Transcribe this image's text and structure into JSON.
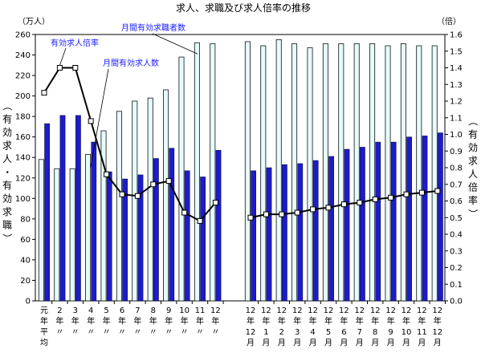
{
  "chart_data": {
    "type": "bar",
    "title": "求人、求職及び求人倍率の推移",
    "left_unit": "（万人）",
    "right_unit": "（倍）",
    "ylabel_left": "（有効求人・有効求職）",
    "ylabel_right": "（有効求人倍率）",
    "ylim_left": [
      0,
      260
    ],
    "ylim_right": [
      0,
      1.6
    ],
    "left_ticks": [
      "0",
      "20",
      "40",
      "60",
      "80",
      "100",
      "120",
      "140",
      "160",
      "180",
      "200",
      "220",
      "240",
      "260"
    ],
    "right_ticks": [
      "0.0",
      "0.1",
      "0.2",
      "0.3",
      "0.4",
      "0.5",
      "0.6",
      "0.7",
      "0.8",
      "0.9",
      "1.0",
      "1.1",
      "1.2",
      "1.3",
      "1.4",
      "1.5",
      "1.6"
    ],
    "categories_group1": [
      [
        "元",
        "年",
        "平",
        "均"
      ],
      [
        "2",
        "年",
        "〃"
      ],
      [
        "3",
        "年",
        "〃"
      ],
      [
        "4",
        "年",
        "〃"
      ],
      [
        "5",
        "年",
        "〃"
      ],
      [
        "6",
        "年",
        "〃"
      ],
      [
        "7",
        "年",
        "〃"
      ],
      [
        "8",
        "年",
        "〃"
      ],
      [
        "9",
        "年",
        "〃"
      ],
      [
        "10",
        "年",
        "〃"
      ],
      [
        "11",
        "年",
        "〃"
      ],
      [
        "12",
        "年",
        "〃"
      ]
    ],
    "categories_group2": [
      [
        "12",
        "年",
        "12",
        "月"
      ],
      [
        "12",
        "年",
        "1",
        "月"
      ],
      [
        "12",
        "年",
        "2",
        "月"
      ],
      [
        "12",
        "年",
        "3",
        "月"
      ],
      [
        "12",
        "年",
        "4",
        "月"
      ],
      [
        "12",
        "年",
        "5",
        "月"
      ],
      [
        "12",
        "年",
        "6",
        "月"
      ],
      [
        "12",
        "年",
        "7",
        "月"
      ],
      [
        "12",
        "年",
        "8",
        "月"
      ],
      [
        "12",
        "年",
        "9",
        "月"
      ],
      [
        "12",
        "年",
        "10",
        "月"
      ],
      [
        "12",
        "年",
        "11",
        "月"
      ],
      [
        "12",
        "年",
        "12",
        "月"
      ]
    ],
    "series": [
      {
        "name": "月間有効求職者数",
        "axis": "left",
        "color": "#e6fbfb",
        "group1": [
          138,
          129,
          129,
          143,
          166,
          185,
          195,
          198,
          206,
          238,
          252,
          251
        ],
        "group2": [
          253,
          249,
          255,
          251,
          247,
          251,
          251,
          251,
          251,
          249,
          251,
          249,
          249
        ]
      },
      {
        "name": "月間有効求人数",
        "axis": "left",
        "color": "#1c1cc8",
        "group1": [
          173,
          181,
          181,
          155,
          126,
          119,
          123,
          139,
          149,
          127,
          121,
          147
        ],
        "group2": [
          127,
          130,
          133,
          134,
          137,
          141,
          148,
          150,
          155,
          155,
          160,
          161,
          164
        ]
      },
      {
        "name": "有効求人倍率",
        "axis": "right",
        "color": "#000000",
        "group1": [
          1.25,
          1.4,
          1.4,
          1.08,
          0.76,
          0.64,
          0.63,
          0.7,
          0.72,
          0.53,
          0.48,
          0.59
        ],
        "group2": [
          0.5,
          0.52,
          0.52,
          0.53,
          0.55,
          0.56,
          0.58,
          0.59,
          0.61,
          0.62,
          0.64,
          0.65,
          0.66
        ]
      }
    ],
    "grid": false,
    "legend": "annotations"
  }
}
